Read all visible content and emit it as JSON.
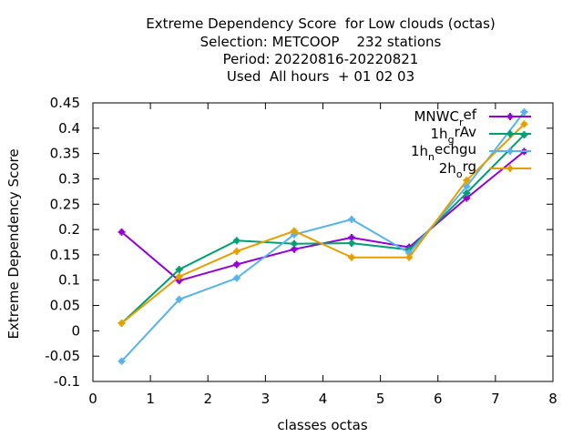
{
  "chart_data": {
    "type": "line",
    "title_lines": [
      "Extreme Dependency Score  for Low clouds (octas)",
      "Selection: METCOOP    232 stations",
      "Period: 20220816-20220821",
      "Used  All hours  + 01 02 03"
    ],
    "xlabel": "classes octas",
    "ylabel": "Extreme Dependency Score",
    "xlim": [
      0,
      8
    ],
    "ylim": [
      -0.1,
      0.45
    ],
    "xticks": [
      "0",
      "1",
      "2",
      "3",
      "4",
      "5",
      "6",
      "7",
      "8"
    ],
    "yticks": [
      "-0.1",
      "-0.05",
      "0",
      "0.05",
      "0.1",
      "0.15",
      "0.2",
      "0.25",
      "0.3",
      "0.35",
      "0.4",
      "0.45"
    ],
    "x": [
      0.5,
      1.5,
      2.5,
      3.5,
      4.5,
      5.5,
      6.5,
      7.5
    ],
    "legend_position": "top-right",
    "series": [
      {
        "name": "MNWC_ref",
        "legend_main": "MNWC",
        "legend_sub": "r",
        "legend_tail": "ef",
        "color": "#9400d3",
        "values": [
          0.195,
          0.099,
          0.131,
          0.161,
          0.184,
          0.165,
          0.262,
          0.354
        ]
      },
      {
        "name": "1h_grAv",
        "legend_main": "1h",
        "legend_sub": "g",
        "legend_tail": "rAv",
        "color": "#009e73",
        "values": [
          0.015,
          0.121,
          0.178,
          0.172,
          0.173,
          0.16,
          0.272,
          0.387
        ]
      },
      {
        "name": "1h_nechgu",
        "legend_main": "1h",
        "legend_sub": "n",
        "legend_tail": "echgu",
        "color": "#56b4e9",
        "values": [
          -0.06,
          0.062,
          0.104,
          0.19,
          0.22,
          0.154,
          0.285,
          0.432
        ]
      },
      {
        "name": "2h_org",
        "legend_main": "2h",
        "legend_sub": "o",
        "legend_tail": "rg",
        "color": "#e69f00",
        "values": [
          0.015,
          0.107,
          0.157,
          0.197,
          0.145,
          0.145,
          0.297,
          0.408
        ]
      }
    ]
  }
}
